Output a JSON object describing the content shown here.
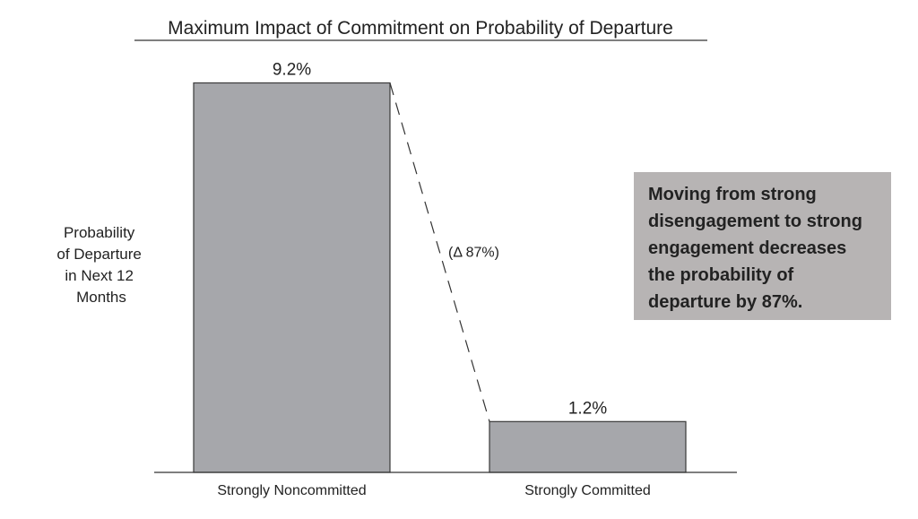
{
  "chart_data": {
    "type": "bar",
    "title": "Maximum Impact of Commitment on Probability of Departure",
    "ylabel": [
      "Probability",
      "of Departure",
      "in Next 12",
      "Months"
    ],
    "xlabel": "",
    "categories": [
      "Strongly Noncommitted",
      "Strongly Committed"
    ],
    "values": [
      9.2,
      1.2
    ],
    "value_labels": [
      "9.2%",
      "1.2%"
    ],
    "ylim": [
      0,
      10
    ],
    "grid": false,
    "bar_color": "#a6a7ab",
    "annotation": {
      "type": "dashed-connector",
      "label": "(Δ 87%)"
    },
    "callout": {
      "lines": [
        "Moving from strong",
        "disengagement to strong",
        "engagement decreases",
        "the probability of",
        "departure by 87%."
      ],
      "background": "#b7b4b4"
    }
  }
}
